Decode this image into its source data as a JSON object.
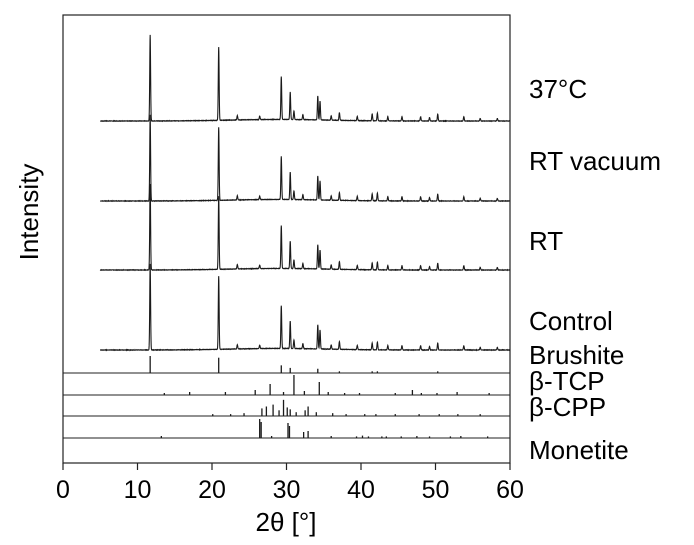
{
  "chart_data": {
    "type": "line",
    "xlabel": "2θ [°]",
    "ylabel": "Intensity",
    "xlim": [
      0,
      60
    ],
    "xticks": [
      0,
      10,
      20,
      30,
      40,
      50,
      60
    ],
    "grid": false,
    "line_color": "#1a1a1a",
    "peaks": [
      [
        11.7,
        1.0
      ],
      [
        20.9,
        0.85
      ],
      [
        23.4,
        0.05
      ],
      [
        26.4,
        0.04
      ],
      [
        29.3,
        0.5
      ],
      [
        30.5,
        0.32
      ],
      [
        31.0,
        0.1
      ],
      [
        32.2,
        0.06
      ],
      [
        34.2,
        0.28
      ],
      [
        34.5,
        0.22
      ],
      [
        36.0,
        0.05
      ],
      [
        37.1,
        0.09
      ],
      [
        39.5,
        0.05
      ],
      [
        41.5,
        0.08
      ],
      [
        42.2,
        0.09
      ],
      [
        43.6,
        0.05
      ],
      [
        45.5,
        0.05
      ],
      [
        48.0,
        0.05
      ],
      [
        49.2,
        0.04
      ],
      [
        50.3,
        0.08
      ],
      [
        53.8,
        0.05
      ],
      [
        56.0,
        0.03
      ],
      [
        58.3,
        0.03
      ]
    ],
    "series": [
      {
        "name": "37°C",
        "x_start": 5,
        "x_end": 60
      },
      {
        "name": "RT vacuum",
        "x_start": 5,
        "x_end": 60
      },
      {
        "name": "RT",
        "x_start": 5,
        "x_end": 60
      },
      {
        "name": "Control",
        "x_start": 5,
        "x_end": 60
      }
    ],
    "references": [
      {
        "name": "Brushite",
        "sticks": [
          [
            11.7,
            1.0
          ],
          [
            20.9,
            0.9
          ],
          [
            29.3,
            0.45
          ],
          [
            30.5,
            0.3
          ],
          [
            34.2,
            0.25
          ],
          [
            37.1,
            0.1
          ],
          [
            41.5,
            0.1
          ],
          [
            42.2,
            0.1
          ],
          [
            50.3,
            0.1
          ]
        ]
      },
      {
        "name": "β-TCP",
        "sticks": [
          [
            13.6,
            0.1
          ],
          [
            17.0,
            0.15
          ],
          [
            21.8,
            0.15
          ],
          [
            25.8,
            0.25
          ],
          [
            27.8,
            0.55
          ],
          [
            29.6,
            0.15
          ],
          [
            31.0,
            1.0
          ],
          [
            32.4,
            0.2
          ],
          [
            34.4,
            0.65
          ],
          [
            35.6,
            0.15
          ],
          [
            37.8,
            0.1
          ],
          [
            39.8,
            0.1
          ],
          [
            44.6,
            0.1
          ],
          [
            46.9,
            0.25
          ],
          [
            48.1,
            0.1
          ],
          [
            50.2,
            0.1
          ],
          [
            52.9,
            0.15
          ],
          [
            57.2,
            0.1
          ]
        ]
      },
      {
        "name": "β-CPP",
        "sticks": [
          [
            20.1,
            0.1
          ],
          [
            22.5,
            0.1
          ],
          [
            24.3,
            0.15
          ],
          [
            26.7,
            0.4
          ],
          [
            27.3,
            0.5
          ],
          [
            28.2,
            0.6
          ],
          [
            29.0,
            0.3
          ],
          [
            29.6,
            0.85
          ],
          [
            30.1,
            0.45
          ],
          [
            30.5,
            0.35
          ],
          [
            31.3,
            0.2
          ],
          [
            32.5,
            0.3
          ],
          [
            32.9,
            0.5
          ],
          [
            34.0,
            0.2
          ],
          [
            36.2,
            0.15
          ],
          [
            38.0,
            0.1
          ],
          [
            40.5,
            0.1
          ],
          [
            42.0,
            0.1
          ],
          [
            44.6,
            0.1
          ],
          [
            47.8,
            0.1
          ],
          [
            50.5,
            0.1
          ],
          [
            53.0,
            0.1
          ],
          [
            56.0,
            0.1
          ]
        ]
      },
      {
        "name": "Monetite",
        "sticks": [
          [
            13.2,
            0.1
          ],
          [
            26.4,
            0.95
          ],
          [
            26.6,
            0.8
          ],
          [
            28.0,
            0.1
          ],
          [
            30.2,
            0.75
          ],
          [
            30.4,
            0.6
          ],
          [
            32.3,
            0.3
          ],
          [
            32.9,
            0.35
          ],
          [
            36.0,
            0.1
          ],
          [
            39.4,
            0.08
          ],
          [
            40.2,
            0.12
          ],
          [
            41.0,
            0.08
          ],
          [
            42.8,
            0.08
          ],
          [
            43.4,
            0.08
          ],
          [
            45.4,
            0.08
          ],
          [
            47.5,
            0.1
          ],
          [
            49.2,
            0.08
          ],
          [
            52.0,
            0.08
          ],
          [
            53.4,
            0.1
          ],
          [
            57.0,
            0.08
          ]
        ]
      }
    ]
  }
}
